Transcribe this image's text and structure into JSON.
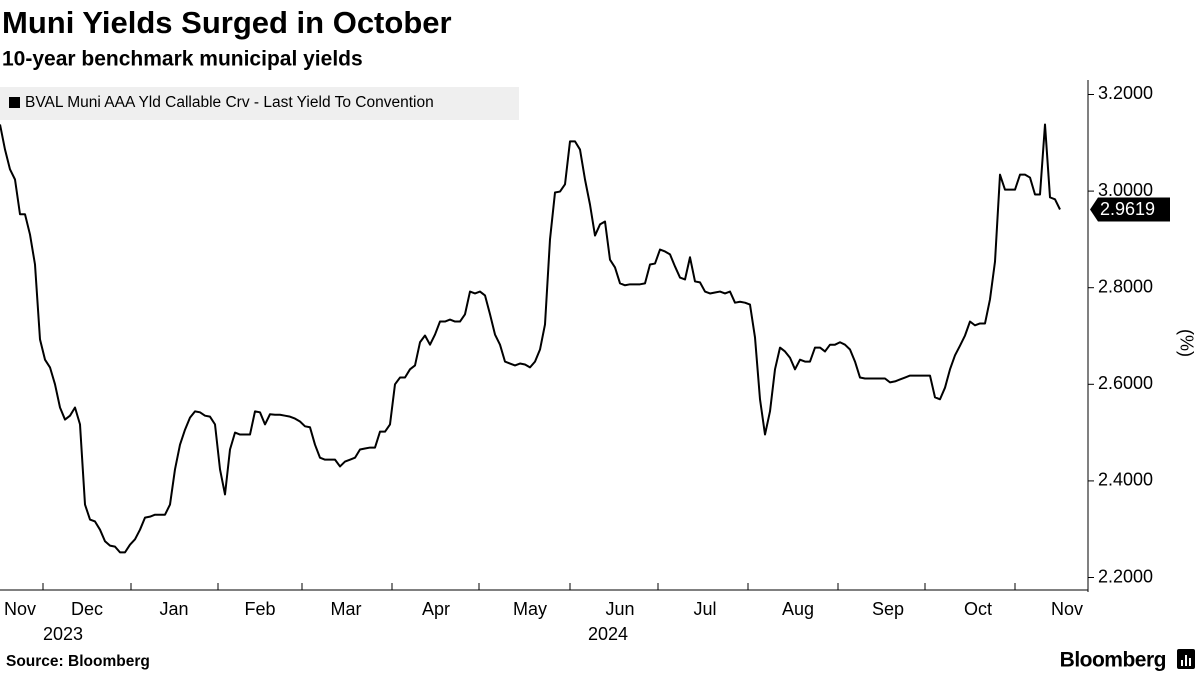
{
  "chart_data": {
    "type": "line",
    "title": "Muni Yields Surged in October",
    "subtitle": "10-year benchmark municipal yields",
    "source": "Source: Bloomberg",
    "brand": "Bloomberg",
    "y_label": "(%)",
    "x_labels": [
      "Nov",
      "Dec",
      "Jan",
      "Feb",
      "Mar",
      "Apr",
      "May",
      "Jun",
      "Jul",
      "Aug",
      "Sep",
      "Oct",
      "Nov"
    ],
    "year_labels": [
      "2023",
      "2024"
    ],
    "ylim": [
      2.17,
      3.23
    ],
    "yticks": [
      {
        "value": 2.2,
        "label": "2.2000"
      },
      {
        "value": 2.4,
        "label": "2.4000"
      },
      {
        "value": 2.6,
        "label": "2.6000"
      },
      {
        "value": 2.8,
        "label": "2.8000"
      },
      {
        "value": 3.0,
        "label": "3.0000"
      },
      {
        "value": 3.2,
        "label": "3.2000"
      }
    ],
    "series": [
      {
        "name": "BVAL Muni AAA Yld Callable Crv - Last Yield To Convention",
        "color": "#000000",
        "values": [
          3.138,
          3.086,
          3.045,
          3.024,
          2.952,
          2.952,
          2.91,
          2.848,
          2.693,
          2.651,
          2.635,
          2.6,
          2.552,
          2.527,
          2.535,
          2.552,
          2.517,
          2.351,
          2.32,
          2.316,
          2.299,
          2.275,
          2.266,
          2.264,
          2.252,
          2.252,
          2.268,
          2.279,
          2.299,
          2.324,
          2.326,
          2.33,
          2.33,
          2.33,
          2.351,
          2.424,
          2.475,
          2.506,
          2.531,
          2.544,
          2.542,
          2.535,
          2.533,
          2.517,
          2.424,
          2.372,
          2.465,
          2.5,
          2.496,
          2.496,
          2.496,
          2.544,
          2.542,
          2.517,
          2.538,
          2.537,
          2.537,
          2.535,
          2.533,
          2.529,
          2.523,
          2.513,
          2.511,
          2.475,
          2.448,
          2.444,
          2.444,
          2.444,
          2.43,
          2.44,
          2.444,
          2.448,
          2.465,
          2.467,
          2.469,
          2.469,
          2.502,
          2.502,
          2.517,
          2.6,
          2.614,
          2.614,
          2.631,
          2.639,
          2.687,
          2.701,
          2.682,
          2.703,
          2.73,
          2.73,
          2.734,
          2.73,
          2.73,
          2.745,
          2.792,
          2.788,
          2.792,
          2.784,
          2.745,
          2.703,
          2.682,
          2.647,
          2.643,
          2.639,
          2.643,
          2.641,
          2.635,
          2.647,
          2.672,
          2.724,
          2.9,
          2.997,
          2.999,
          3.014,
          3.103,
          3.103,
          3.086,
          3.024,
          2.972,
          2.908,
          2.931,
          2.937,
          2.858,
          2.842,
          2.809,
          2.805,
          2.807,
          2.807,
          2.807,
          2.809,
          2.848,
          2.85,
          2.879,
          2.875,
          2.869,
          2.844,
          2.821,
          2.817,
          2.863,
          2.813,
          2.811,
          2.792,
          2.788,
          2.79,
          2.792,
          2.788,
          2.792,
          2.769,
          2.771,
          2.769,
          2.765,
          2.697,
          2.569,
          2.496,
          2.544,
          2.631,
          2.676,
          2.668,
          2.655,
          2.631,
          2.651,
          2.647,
          2.647,
          2.676,
          2.676,
          2.668,
          2.682,
          2.682,
          2.687,
          2.682,
          2.672,
          2.647,
          2.614,
          2.612,
          2.612,
          2.612,
          2.612,
          2.612,
          2.604,
          2.606,
          2.61,
          2.614,
          2.618,
          2.618,
          2.618,
          2.618,
          2.618,
          2.573,
          2.569,
          2.593,
          2.631,
          2.66,
          2.68,
          2.701,
          2.73,
          2.722,
          2.726,
          2.726,
          2.776,
          2.854,
          3.034,
          3.003,
          3.003,
          3.003,
          3.034,
          3.034,
          3.028,
          2.993,
          2.993,
          3.138,
          2.987,
          2.983,
          2.9619
        ]
      }
    ]
  }
}
